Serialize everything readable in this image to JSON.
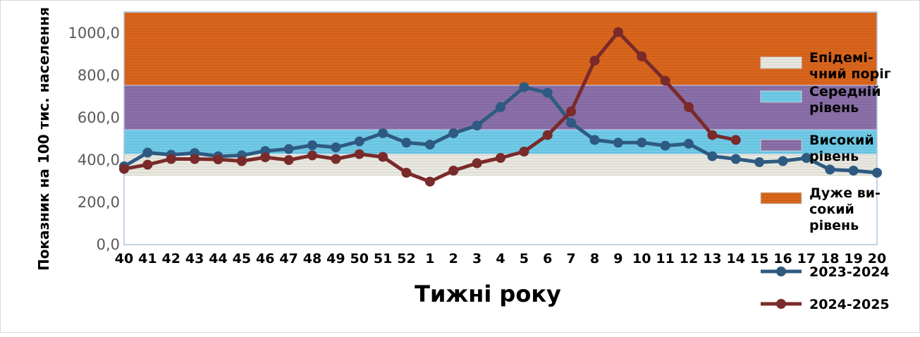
{
  "chart_data": {
    "type": "line",
    "xlabel": "Тижні року",
    "ylabel": "Показник на 100 тис. населення",
    "categories": [
      "40",
      "41",
      "42",
      "43",
      "44",
      "45",
      "46",
      "47",
      "48",
      "49",
      "50",
      "51",
      "52",
      "1",
      "2",
      "3",
      "4",
      "5",
      "6",
      "7",
      "8",
      "9",
      "10",
      "11",
      "12",
      "13",
      "14",
      "15",
      "16",
      "17",
      "18",
      "19",
      "20"
    ],
    "y_ticks": [
      "0,0",
      "200,0",
      "400,0",
      "600,0",
      "800,0",
      "1000,0"
    ],
    "ylim": [
      0,
      1100
    ],
    "bands": [
      {
        "name": "Епідемічний поріг",
        "legend_lines": [
          "Епідемі-",
          "чний поріг"
        ],
        "from": 325,
        "to": 430,
        "color": "#e8e8e0"
      },
      {
        "name": "Середній рівень",
        "legend_lines": [
          "Середній",
          "рівень"
        ],
        "from": 430,
        "to": 545,
        "color": "#6fcbe8"
      },
      {
        "name": "Високий рівень",
        "legend_lines": [
          "Високий",
          "рівень"
        ],
        "from": 545,
        "to": 755,
        "color": "#8a6fa8"
      },
      {
        "name": "Дуже високий рівень",
        "legend_lines": [
          "Дуже ви-",
          "сокий",
          "рівень"
        ],
        "from": 755,
        "to": 1100,
        "color": "#d9651c"
      }
    ],
    "series": [
      {
        "name": "2023-2024",
        "color": "#2e5a82",
        "values": [
          370,
          435,
          425,
          433,
          418,
          422,
          443,
          452,
          470,
          460,
          488,
          527,
          482,
          473,
          527,
          563,
          650,
          745,
          718,
          576,
          495,
          482,
          483,
          468,
          477,
          418,
          405,
          390,
          395,
          410,
          355,
          350,
          340
        ]
      },
      {
        "name": "2024-2025",
        "color": "#7a2a2a",
        "values": [
          358,
          378,
          405,
          405,
          403,
          395,
          413,
          400,
          422,
          405,
          428,
          415,
          340,
          298,
          350,
          385,
          410,
          440,
          518,
          630,
          870,
          1005,
          890,
          775,
          650,
          518,
          495,
          null,
          null,
          null,
          null,
          null,
          null
        ]
      }
    ],
    "legend_position": "right"
  }
}
